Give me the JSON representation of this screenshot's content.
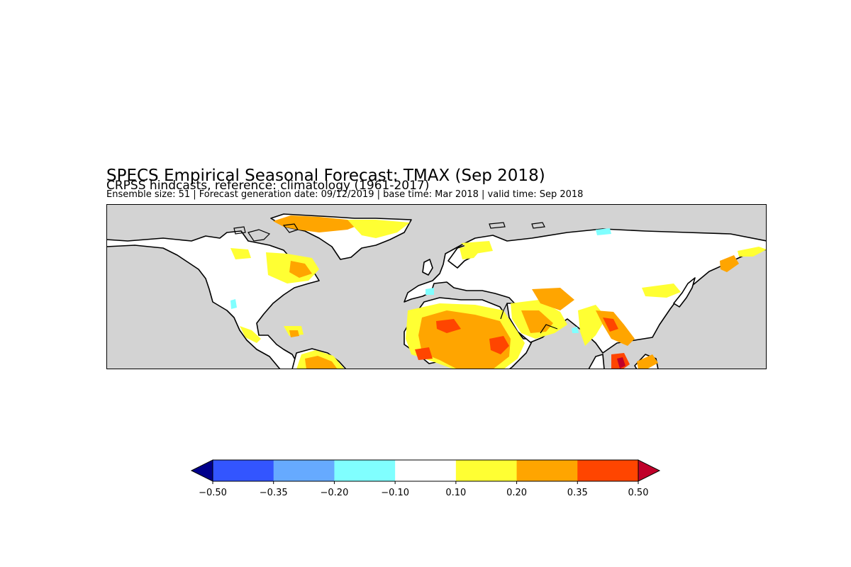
{
  "header": {
    "title": "SPECS Empirical Seasonal Forecast: TMAX (Sep 2018)",
    "subtitle": "CRPSS hindcasts, reference: climatology (1961-2017)",
    "info": "Ensemble size: 51 | Forecast generation date: 09/12/2019 | base time: Mar 2018 | valid time: Sep 2018"
  },
  "map": {
    "background_color": "#d3d3d3",
    "land_color": "#ffffff",
    "coastline_color": "#000000"
  },
  "colorbar": {
    "extend_low_color": "#00008b",
    "extend_high_color": "#c0002a",
    "bins": [
      {
        "color": "#3355ff"
      },
      {
        "color": "#66aaff"
      },
      {
        "color": "#80ffff"
      },
      {
        "color": "#ffffff"
      },
      {
        "color": "#ffff33"
      },
      {
        "color": "#ffa500"
      },
      {
        "color": "#ff4500"
      }
    ],
    "ticks": [
      "−0.50",
      "−0.35",
      "−0.20",
      "−0.10",
      "0.10",
      "0.20",
      "0.35",
      "0.50"
    ]
  }
}
